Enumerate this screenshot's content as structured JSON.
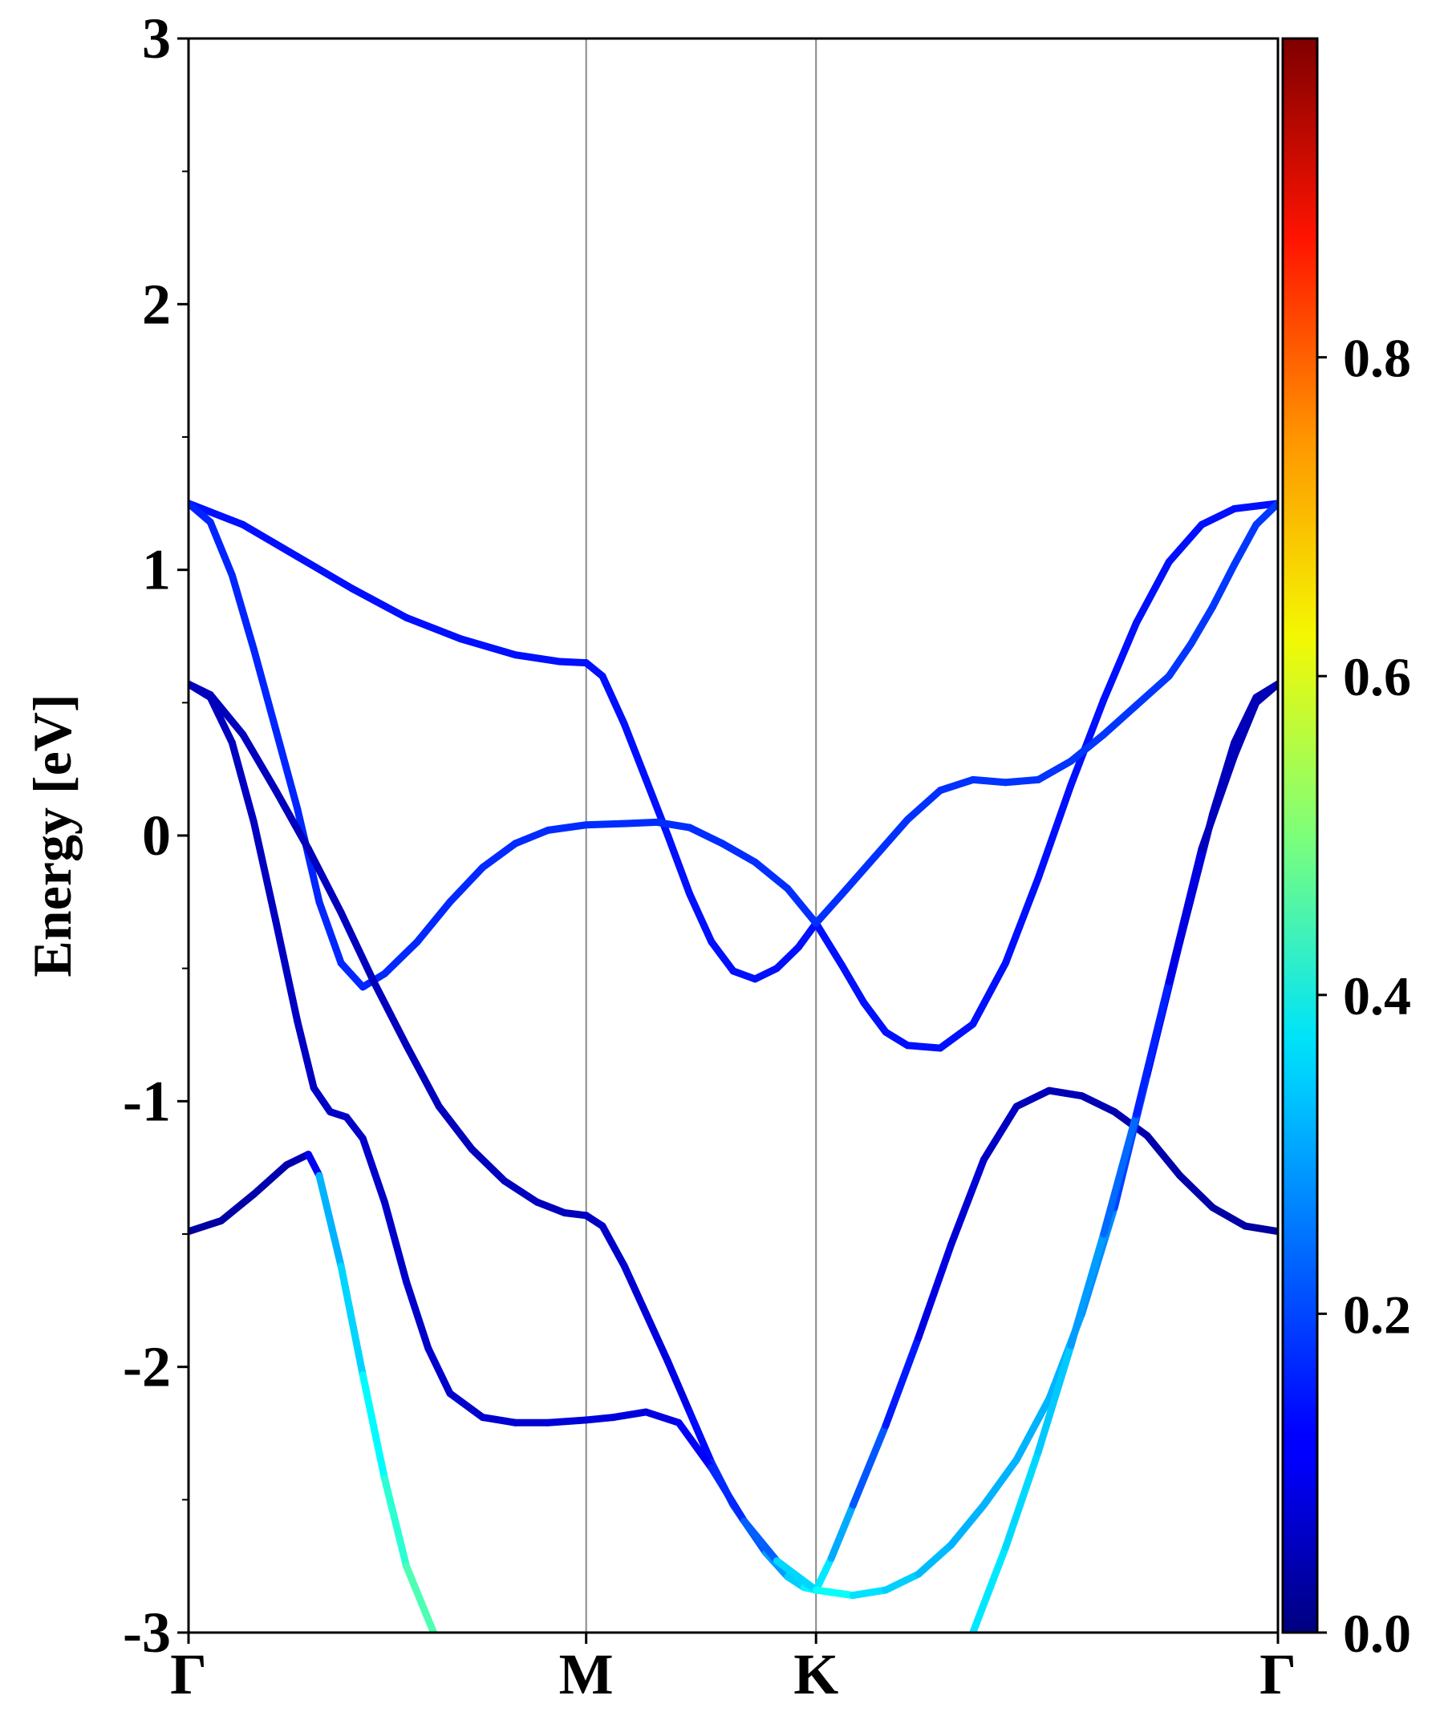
{
  "chart_data": {
    "type": "line",
    "title": "",
    "xlabel": "",
    "ylabel": "Energy [eV]",
    "ylim": [
      -3,
      3
    ],
    "y_ticks": [
      {
        "value": 3,
        "label": "3"
      },
      {
        "value": 2,
        "label": "2"
      },
      {
        "value": 1,
        "label": "1"
      },
      {
        "value": 0,
        "label": "0"
      },
      {
        "value": -1,
        "label": "-1"
      },
      {
        "value": -2,
        "label": "-2"
      },
      {
        "value": -3,
        "label": "-3"
      }
    ],
    "y_minor_ticks": [
      2.5,
      1.5,
      0.5,
      -0.5,
      -1.5,
      -2.5
    ],
    "x_ticks": [
      {
        "value": 0,
        "label": "Γ"
      },
      {
        "value": 0.365,
        "label": "M"
      },
      {
        "value": 0.576,
        "label": "K"
      },
      {
        "value": 1.0,
        "label": "Γ"
      }
    ],
    "xlim": [
      0,
      1
    ],
    "colorbar": {
      "colormap": "jet",
      "range": [
        0.0,
        1.0
      ],
      "ticks": [
        {
          "value": 0.0,
          "label": "0.0"
        },
        {
          "value": 0.2,
          "label": "0.2"
        },
        {
          "value": 0.4,
          "label": "0.4"
        },
        {
          "value": 0.6,
          "label": "0.6"
        },
        {
          "value": 0.8,
          "label": "0.8"
        }
      ]
    },
    "grid": false,
    "series": [
      {
        "points": [
          [
            0,
            1.25
          ],
          [
            0.05,
            1.17
          ],
          [
            0.1,
            1.05
          ],
          [
            0.15,
            0.93
          ],
          [
            0.2,
            0.82
          ],
          [
            0.25,
            0.74
          ],
          [
            0.3,
            0.68
          ],
          [
            0.34,
            0.655
          ],
          [
            0.365,
            0.65
          ],
          [
            0.38,
            0.6
          ],
          [
            0.4,
            0.42
          ],
          [
            0.42,
            0.21
          ],
          [
            0.44,
            0.0
          ],
          [
            0.46,
            -0.22
          ],
          [
            0.48,
            -0.4
          ],
          [
            0.5,
            -0.51
          ],
          [
            0.52,
            -0.54
          ],
          [
            0.54,
            -0.5
          ],
          [
            0.56,
            -0.42
          ],
          [
            0.576,
            -0.33
          ],
          [
            0.6,
            -0.49
          ],
          [
            0.62,
            -0.63
          ],
          [
            0.64,
            -0.74
          ],
          [
            0.66,
            -0.79
          ],
          [
            0.69,
            -0.8
          ],
          [
            0.72,
            -0.71
          ],
          [
            0.75,
            -0.48
          ],
          [
            0.78,
            -0.16
          ],
          [
            0.81,
            0.19
          ],
          [
            0.84,
            0.51
          ],
          [
            0.87,
            0.8
          ],
          [
            0.9,
            1.03
          ],
          [
            0.93,
            1.17
          ],
          [
            0.96,
            1.23
          ],
          [
            1.0,
            1.25
          ]
        ],
        "weights": [
          [
            0,
            0.14
          ],
          [
            1,
            0.14
          ]
        ]
      },
      {
        "points": [
          [
            0,
            1.25
          ],
          [
            0.02,
            1.18
          ],
          [
            0.04,
            0.98
          ],
          [
            0.06,
            0.7
          ],
          [
            0.08,
            0.4
          ],
          [
            0.1,
            0.1
          ],
          [
            0.12,
            -0.25
          ],
          [
            0.14,
            -0.48
          ],
          [
            0.16,
            -0.57
          ],
          [
            0.18,
            -0.52
          ],
          [
            0.21,
            -0.4
          ],
          [
            0.24,
            -0.25
          ],
          [
            0.27,
            -0.12
          ],
          [
            0.3,
            -0.03
          ],
          [
            0.33,
            0.02
          ],
          [
            0.365,
            0.04
          ],
          [
            0.4,
            0.045
          ],
          [
            0.43,
            0.05
          ],
          [
            0.46,
            0.03
          ],
          [
            0.49,
            -0.03
          ],
          [
            0.52,
            -0.1
          ],
          [
            0.55,
            -0.2
          ],
          [
            0.576,
            -0.33
          ],
          [
            0.6,
            -0.22
          ],
          [
            0.63,
            -0.08
          ],
          [
            0.66,
            0.06
          ],
          [
            0.69,
            0.17
          ],
          [
            0.72,
            0.21
          ],
          [
            0.75,
            0.2
          ],
          [
            0.78,
            0.21
          ],
          [
            0.81,
            0.28
          ],
          [
            0.84,
            0.38
          ],
          [
            0.87,
            0.49
          ],
          [
            0.9,
            0.6
          ],
          [
            0.92,
            0.72
          ],
          [
            0.94,
            0.86
          ],
          [
            0.96,
            1.02
          ],
          [
            0.98,
            1.17
          ],
          [
            1.0,
            1.25
          ]
        ],
        "weights": [
          [
            0,
            0.16
          ],
          [
            1,
            0.18
          ]
        ]
      },
      {
        "points": [
          [
            0,
            0.57
          ],
          [
            0.02,
            0.53
          ],
          [
            0.05,
            0.38
          ],
          [
            0.08,
            0.17
          ],
          [
            0.11,
            -0.05
          ],
          [
            0.14,
            -0.29
          ],
          [
            0.17,
            -0.55
          ],
          [
            0.2,
            -0.79
          ],
          [
            0.23,
            -1.02
          ],
          [
            0.26,
            -1.18
          ],
          [
            0.29,
            -1.3
          ],
          [
            0.32,
            -1.38
          ],
          [
            0.345,
            -1.42
          ],
          [
            0.365,
            -1.43
          ],
          [
            0.38,
            -1.47
          ],
          [
            0.4,
            -1.62
          ],
          [
            0.42,
            -1.8
          ],
          [
            0.44,
            -1.98
          ],
          [
            0.46,
            -2.17
          ],
          [
            0.48,
            -2.36
          ],
          [
            0.5,
            -2.52
          ],
          [
            0.53,
            -2.7
          ],
          [
            0.55,
            -2.79
          ],
          [
            0.565,
            -2.83
          ],
          [
            0.576,
            -2.84
          ],
          [
            0.59,
            -2.72
          ],
          [
            0.61,
            -2.52
          ],
          [
            0.64,
            -2.22
          ],
          [
            0.67,
            -1.89
          ],
          [
            0.7,
            -1.54
          ],
          [
            0.73,
            -1.22
          ],
          [
            0.76,
            -1.02
          ],
          [
            0.79,
            -0.96
          ],
          [
            0.82,
            -0.98
          ],
          [
            0.85,
            -1.04
          ],
          [
            0.88,
            -1.13
          ],
          [
            0.91,
            -1.28
          ],
          [
            0.94,
            -1.4
          ],
          [
            0.97,
            -1.47
          ],
          [
            1.0,
            -1.49
          ]
        ],
        "weights": [
          [
            0,
            0.06
          ],
          [
            0.36,
            0.06
          ],
          [
            0.45,
            0.1
          ],
          [
            0.52,
            0.22
          ],
          [
            0.576,
            0.38
          ],
          [
            0.62,
            0.22
          ],
          [
            0.68,
            0.1
          ],
          [
            0.76,
            0.06
          ],
          [
            1,
            0.03
          ]
        ]
      },
      {
        "points": [
          [
            0,
            0.57
          ],
          [
            0.02,
            0.52
          ],
          [
            0.04,
            0.35
          ],
          [
            0.06,
            0.05
          ],
          [
            0.08,
            -0.32
          ],
          [
            0.1,
            -0.7
          ],
          [
            0.115,
            -0.95
          ],
          [
            0.13,
            -1.04
          ],
          [
            0.145,
            -1.06
          ],
          [
            0.16,
            -1.14
          ],
          [
            0.18,
            -1.38
          ],
          [
            0.2,
            -1.68
          ],
          [
            0.22,
            -1.93
          ],
          [
            0.24,
            -2.1
          ],
          [
            0.27,
            -2.19
          ],
          [
            0.3,
            -2.21
          ],
          [
            0.33,
            -2.21
          ],
          [
            0.365,
            -2.2
          ],
          [
            0.39,
            -2.19
          ],
          [
            0.42,
            -2.17
          ],
          [
            0.45,
            -2.21
          ],
          [
            0.48,
            -2.38
          ],
          [
            0.51,
            -2.58
          ],
          [
            0.54,
            -2.73
          ],
          [
            0.576,
            -2.84
          ],
          [
            0.61,
            -2.86
          ],
          [
            0.64,
            -2.84
          ],
          [
            0.67,
            -2.78
          ],
          [
            0.7,
            -2.67
          ],
          [
            0.73,
            -2.52
          ],
          [
            0.76,
            -2.35
          ],
          [
            0.79,
            -2.12
          ],
          [
            0.82,
            -1.8
          ],
          [
            0.85,
            -1.4
          ],
          [
            0.88,
            -0.9
          ],
          [
            0.91,
            -0.4
          ],
          [
            0.94,
            0.08
          ],
          [
            0.96,
            0.35
          ],
          [
            0.98,
            0.52
          ],
          [
            1.0,
            0.57
          ]
        ],
        "weights": [
          [
            0,
            0.06
          ],
          [
            0.3,
            0.08
          ],
          [
            0.45,
            0.1
          ],
          [
            0.52,
            0.2
          ],
          [
            0.576,
            0.4
          ],
          [
            0.62,
            0.35
          ],
          [
            0.7,
            0.3
          ],
          [
            0.82,
            0.3
          ],
          [
            0.88,
            0.15
          ],
          [
            0.94,
            0.06
          ],
          [
            1,
            0.05
          ]
        ]
      },
      {
        "points": [
          [
            0,
            -1.49
          ],
          [
            0.03,
            -1.45
          ],
          [
            0.06,
            -1.35
          ],
          [
            0.09,
            -1.24
          ],
          [
            0.11,
            -1.2
          ],
          [
            0.12,
            -1.28
          ],
          [
            0.14,
            -1.62
          ],
          [
            0.16,
            -2.03
          ],
          [
            0.18,
            -2.42
          ],
          [
            0.2,
            -2.75
          ],
          [
            0.225,
            -3.0
          ]
        ],
        "weights": [
          [
            0,
            0.03
          ],
          [
            0.11,
            0.05
          ],
          [
            0.13,
            0.3
          ],
          [
            0.16,
            0.35
          ],
          [
            0.2,
            0.44
          ],
          [
            0.225,
            0.46
          ]
        ]
      },
      {
        "points": [
          [
            0.72,
            -3.0
          ],
          [
            0.75,
            -2.68
          ],
          [
            0.78,
            -2.32
          ],
          [
            0.81,
            -1.92
          ],
          [
            0.84,
            -1.5
          ],
          [
            0.87,
            -1.05
          ],
          [
            0.9,
            -0.55
          ],
          [
            0.93,
            -0.05
          ],
          [
            0.96,
            0.3
          ],
          [
            0.98,
            0.5
          ],
          [
            1.0,
            0.57
          ]
        ],
        "weights": [
          [
            0.72,
            0.36
          ],
          [
            0.8,
            0.32
          ],
          [
            0.86,
            0.22
          ],
          [
            0.9,
            0.12
          ],
          [
            0.94,
            0.06
          ],
          [
            1,
            0.05
          ]
        ]
      }
    ]
  }
}
